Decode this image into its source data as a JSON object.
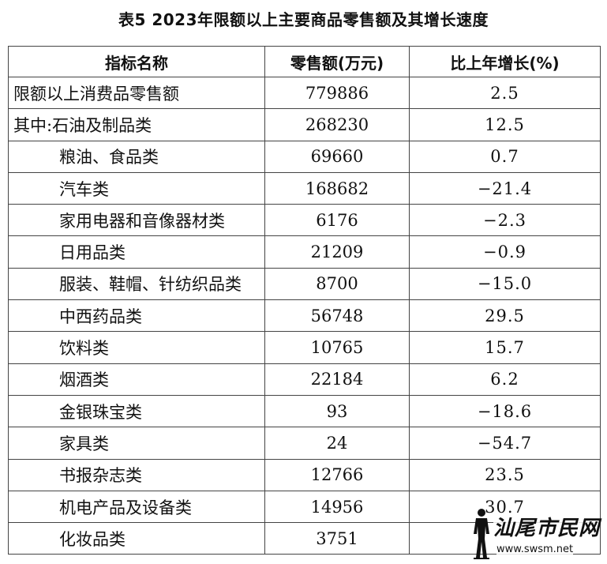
{
  "title": "表5  2023年限额以上主要商品零售额及其增长速度",
  "table": {
    "headers": [
      "指标名称",
      "零售额(万元)",
      "比上年增长(%)"
    ],
    "rows": [
      {
        "name": "限额以上消费品零售额",
        "sales": "779886",
        "growth": "2.5"
      },
      {
        "name": "其中:石油及制品类",
        "sales": "268230",
        "growth": "12.5"
      },
      {
        "name": "粮油、食品类",
        "sales": "69660",
        "growth": "0.7"
      },
      {
        "name": "汽车类",
        "sales": "168682",
        "growth": "−21.4"
      },
      {
        "name": "家用电器和音像器材类",
        "sales": "6176",
        "growth": "−2.3"
      },
      {
        "name": "日用品类",
        "sales": "21209",
        "growth": "−0.9"
      },
      {
        "name": "服装、鞋帽、针纺织品类",
        "sales": "8700",
        "growth": "−15.0"
      },
      {
        "name": "中西药品类",
        "sales": "56748",
        "growth": "29.5"
      },
      {
        "name": "饮料类",
        "sales": "10765",
        "growth": "15.7"
      },
      {
        "name": "烟酒类",
        "sales": "22184",
        "growth": "6.2"
      },
      {
        "name": "金银珠宝类",
        "sales": "93",
        "growth": "−18.6"
      },
      {
        "name": "家具类",
        "sales": "24",
        "growth": "−54.7"
      },
      {
        "name": "书报杂志类",
        "sales": "12766",
        "growth": "23.5"
      },
      {
        "name": "机电产品及设备类",
        "sales": "14956",
        "growth": "30.7"
      },
      {
        "name": "化妆品类",
        "sales": "3751",
        "growth": ""
      }
    ]
  },
  "watermark": {
    "logo_text": "汕尾市民网",
    "url": "www.swsm.net"
  }
}
